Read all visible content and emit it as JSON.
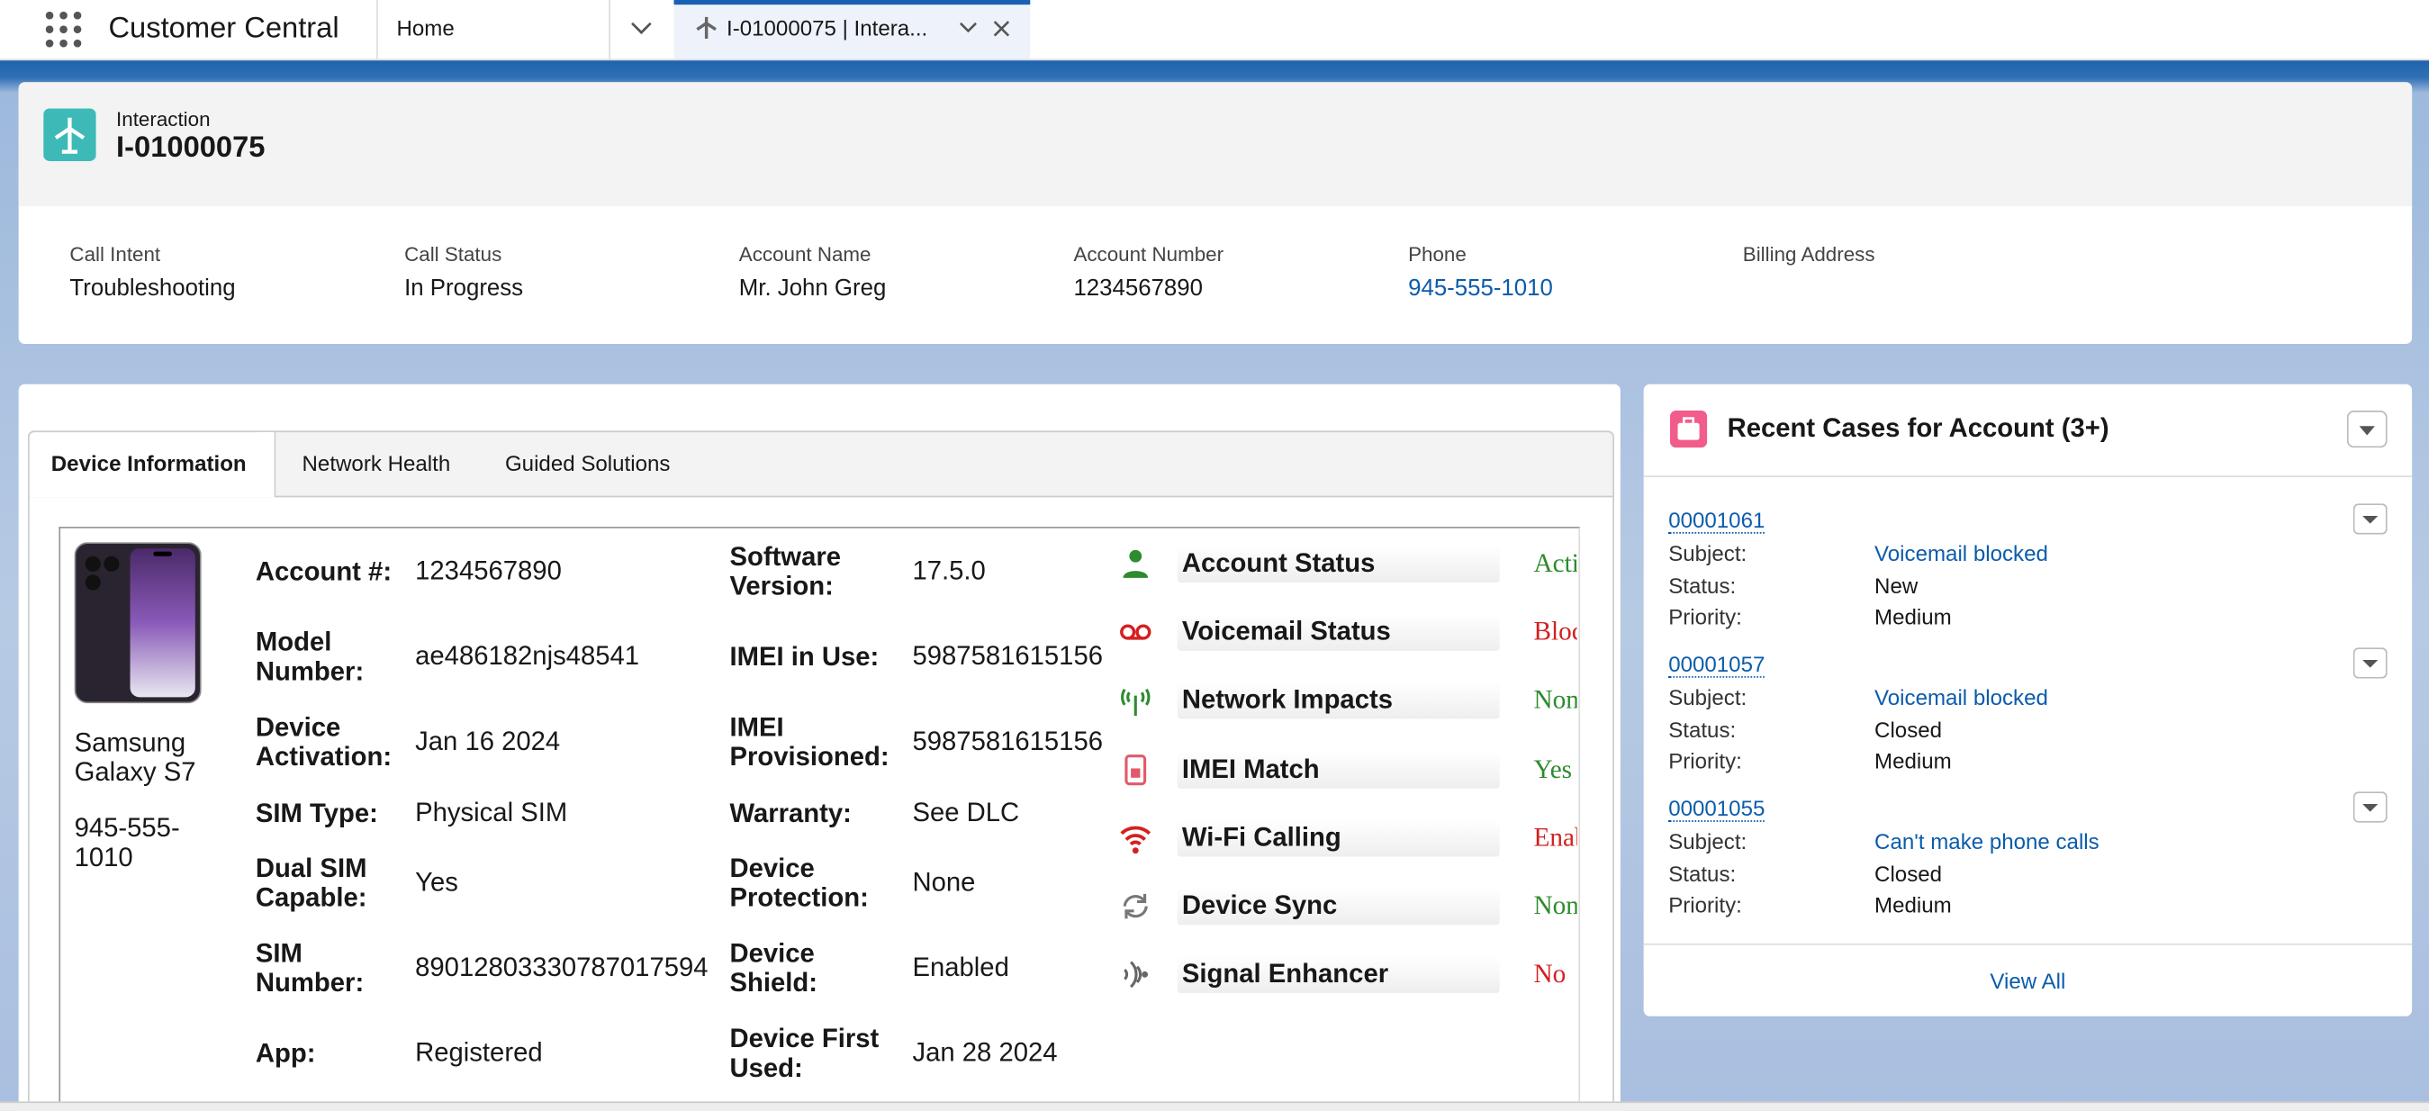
{
  "app": {
    "name": "Customer Central"
  },
  "tabs": [
    "Home",
    "I-01000075 | Intera..."
  ],
  "header": {
    "object_type": "Interaction",
    "title": "I-01000075",
    "fields": [
      {
        "label": "Call Intent",
        "value": "Troubleshooting"
      },
      {
        "label": "Call Status",
        "value": "In Progress"
      },
      {
        "label": "Account Name",
        "value": "Mr. John Greg"
      },
      {
        "label": "Account Number",
        "value": "1234567890"
      },
      {
        "label": "Phone",
        "value": "945-555-1010"
      },
      {
        "label": "Billing Address"
      }
    ]
  },
  "device_tabs": [
    "Device Information",
    "Network Health",
    "Guided Solutions"
  ],
  "device": {
    "name": "Samsung Galaxy S7",
    "phone": "945-555-1010",
    "fields_left": [
      {
        "label": "Account #:",
        "value": "1234567890"
      },
      {
        "label": "Model Number:",
        "value": "ae486182njs48541"
      },
      {
        "label": "Device Activation:",
        "value": "Jan 16 2024"
      },
      {
        "label": "SIM Type:",
        "value": "Physical SIM"
      },
      {
        "label": "Dual SIM Capable:",
        "value": "Yes"
      },
      {
        "label": "SIM Number:",
        "value": "89012803330787017594"
      },
      {
        "label": "App:",
        "value": "Registered"
      }
    ],
    "fields_right": [
      {
        "label": "Software Version:",
        "value": "17.5.0"
      },
      {
        "label": "IMEI in Use:",
        "value": "5987581615156"
      },
      {
        "label": "IMEI Provisioned:",
        "value": "5987581615156"
      },
      {
        "label": "Warranty:",
        "value": "See DLC"
      },
      {
        "label": "Device Protection:",
        "value": "None"
      },
      {
        "label": "Device Shield:",
        "value": "Enabled"
      },
      {
        "label": "Device First Used:",
        "value": "Jan 28 2024"
      }
    ]
  },
  "status": [
    {
      "label": "Account Status",
      "value": "Active",
      "color": "#2e8b2e"
    },
    {
      "label": "Voicemail Status",
      "value": "Blocked",
      "color": "#d42020"
    },
    {
      "label": "Network Impacts",
      "value": "None",
      "color": "#2e8b2e"
    },
    {
      "label": "IMEI Match",
      "value": "Yes",
      "color": "#2e8b2e"
    },
    {
      "label": "Wi-Fi Calling",
      "value": "Enabled",
      "color": "#d42020"
    },
    {
      "label": "Device Sync",
      "value": "None",
      "color": "#2e8b2e"
    },
    {
      "label": "Signal Enhancer",
      "value": "No",
      "color": "#d42020"
    }
  ],
  "cases": {
    "title": "Recent Cases for Account (3+)",
    "labels": {
      "subject": "Subject:",
      "status": "Status:",
      "priority": "Priority:"
    },
    "items": [
      {
        "number": "00001061",
        "subject": "Voicemail blocked",
        "status": "New",
        "priority": "Medium"
      },
      {
        "number": "00001057",
        "subject": "Voicemail blocked",
        "status": "Closed",
        "priority": "Medium"
      },
      {
        "number": "00001055",
        "subject": "Can't make phone calls",
        "status": "Closed",
        "priority": "Medium"
      }
    ],
    "view_all": "View All"
  }
}
